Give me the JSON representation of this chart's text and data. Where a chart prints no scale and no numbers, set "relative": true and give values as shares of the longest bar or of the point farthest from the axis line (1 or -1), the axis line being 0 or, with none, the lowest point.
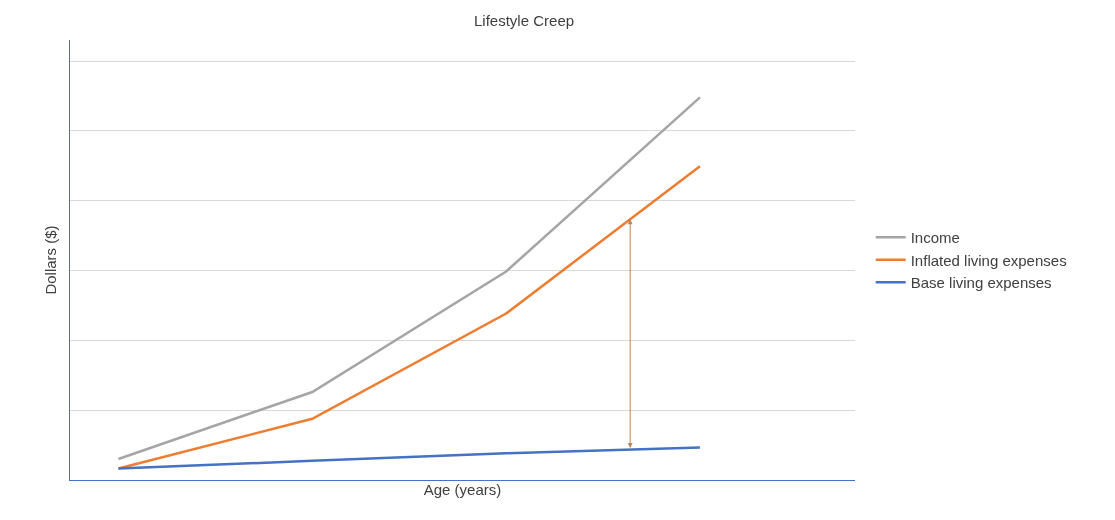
{
  "chart_data": {
    "type": "line",
    "title": "Lifestyle Creep",
    "xlabel": "Age (years)",
    "ylabel": "Dollars ($)",
    "relative": true,
    "categories": [
      null,
      null,
      null,
      null
    ],
    "grid": "y",
    "legend": "right",
    "marker": "none",
    "line_style": "solid",
    "tick_labels": false,
    "series": [
      {
        "name": "Income",
        "color": "#a5a5a5",
        "values": [
          0.055,
          0.23,
          0.545,
          1
        ]
      },
      {
        "name": "Inflated living expenses",
        "color": "#ed7d31",
        "values": [
          0.03,
          0.16,
          0.435,
          0.82
        ]
      },
      {
        "name": "Base living expenses",
        "color": "#4472c4",
        "values": [
          0.03,
          0.05,
          0.07,
          0.085
        ]
      }
    ]
  }
}
